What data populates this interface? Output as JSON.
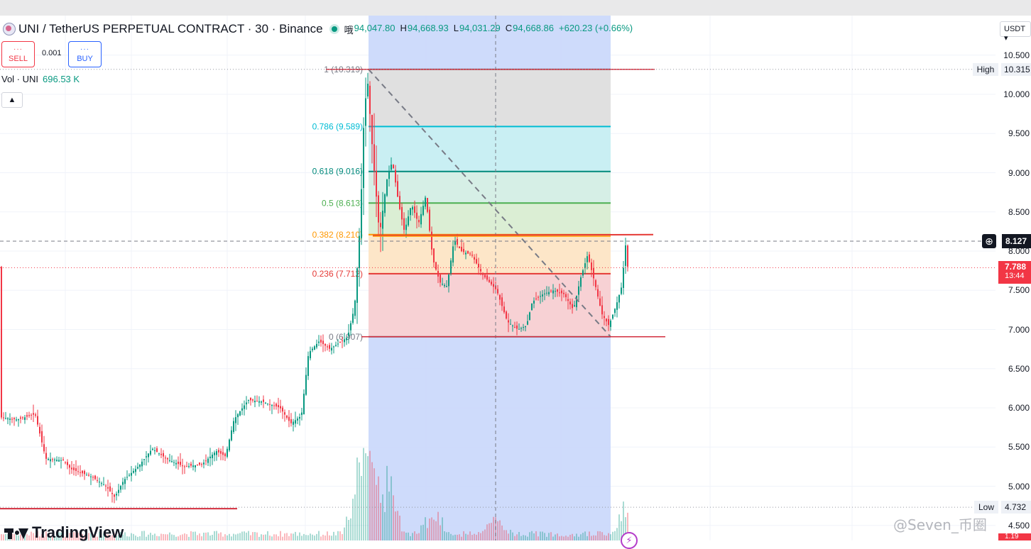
{
  "header": {
    "symbol_title": "UNI / TetherUS PERPETUAL CONTRACT · 30 · Binance",
    "ohlc": [
      {
        "key": "哦",
        "value": "94,047.80"
      },
      {
        "key": "H",
        "value": "94,668.93"
      },
      {
        "key": "L",
        "value": "94,031.29"
      },
      {
        "key": "C",
        "value": "94,668.86"
      },
      {
        "key": "",
        "value": "+620.23 (+0.66%)"
      }
    ]
  },
  "trade": {
    "sell_dots": "···",
    "sell_label": "SELL",
    "qty": "0.001",
    "buy_dots": "···",
    "buy_label": "BUY"
  },
  "volume": {
    "label": "Vol · UNI",
    "value": "696.53 K"
  },
  "collapse_icon": "chevron-up-icon",
  "axis": {
    "currency": "USDT",
    "ticks": [
      "10.500",
      "10.000",
      "9.500",
      "9.000",
      "8.500",
      "8.000",
      "7.500",
      "7.000",
      "6.500",
      "6.000",
      "5.500",
      "5.000",
      "4.500"
    ],
    "tick_values": [
      10.5,
      10.0,
      9.5,
      9.0,
      8.5,
      8.0,
      7.5,
      7.0,
      6.5,
      6.0,
      5.5,
      5.0,
      4.5
    ],
    "high_label": "High",
    "high_value": "10.315",
    "crosshair_value": "8.127",
    "last_price": "7.788",
    "countdown": "13:44",
    "low_label": "Low",
    "low_value": "4.732",
    "bottom_badge": "1.19"
  },
  "fib": {
    "levels": [
      {
        "ratio": 1,
        "label": "1 (10.319)",
        "price": 10.319,
        "color": "#787b86",
        "fill": "#e0e0e0"
      },
      {
        "ratio": 0.786,
        "label": "0.786 (9.589)",
        "price": 9.589,
        "color": "#00bcd4",
        "fill": "#c9eff3"
      },
      {
        "ratio": 0.618,
        "label": "0.618 (9.016)",
        "price": 9.016,
        "color": "#00897b",
        "fill": "#d6efe6"
      },
      {
        "ratio": 0.5,
        "label": "0.5 (8.613)",
        "price": 8.613,
        "color": "#4caf50",
        "fill": "#dbeed4"
      },
      {
        "ratio": 0.382,
        "label": "0.382 (8.210)",
        "price": 8.21,
        "color": "#ff9800",
        "fill": "#fde6c8"
      },
      {
        "ratio": 0.236,
        "label": "0.236 (7.712)",
        "price": 7.712,
        "color": "#e53935",
        "fill": "#f7d1d4"
      },
      {
        "ratio": 0,
        "label": "0 (6.907)",
        "price": 6.907,
        "color": "#787b86",
        "fill": ""
      }
    ]
  },
  "colors": {
    "up": "#089981",
    "down": "#f23645",
    "fib_range_highlight": "#c9d7fb",
    "support_line": "#d32f3f"
  },
  "branding": {
    "logo_text": "TradingView",
    "watermark": "@Seven_币圈"
  },
  "chart_data": {
    "type": "candlestick",
    "title": "UNI / TetherUS PERPETUAL CONTRACT · 30 · Binance",
    "ylabel": "USDT",
    "ylim": [
      4.4,
      10.7
    ],
    "grid": true,
    "price_anchors": [
      [
        0,
        5.88
      ],
      [
        25,
        5.85
      ],
      [
        50,
        5.92
      ],
      [
        65,
        5.35
      ],
      [
        90,
        5.33
      ],
      [
        100,
        5.22
      ],
      [
        130,
        5.12
      ],
      [
        150,
        5.0
      ],
      [
        162,
        4.86
      ],
      [
        175,
        5.08
      ],
      [
        195,
        5.25
      ],
      [
        215,
        5.48
      ],
      [
        235,
        5.35
      ],
      [
        260,
        5.25
      ],
      [
        285,
        5.28
      ],
      [
        305,
        5.45
      ],
      [
        318,
        5.38
      ],
      [
        330,
        5.85
      ],
      [
        350,
        6.1
      ],
      [
        370,
        6.08
      ],
      [
        395,
        6.0
      ],
      [
        410,
        5.8
      ],
      [
        425,
        5.9
      ],
      [
        435,
        6.7
      ],
      [
        450,
        6.85
      ],
      [
        465,
        6.75
      ],
      [
        490,
        6.9
      ],
      [
        500,
        7.3
      ],
      [
        508,
        8.4
      ],
      [
        513,
        9.7
      ],
      [
        518,
        10.2
      ],
      [
        525,
        9.3
      ],
      [
        535,
        8.2
      ],
      [
        545,
        8.9
      ],
      [
        553,
        9.15
      ],
      [
        562,
        8.6
      ],
      [
        570,
        8.25
      ],
      [
        580,
        8.6
      ],
      [
        590,
        8.35
      ],
      [
        600,
        8.7
      ],
      [
        610,
        7.9
      ],
      [
        620,
        7.6
      ],
      [
        630,
        7.55
      ],
      [
        640,
        8.15
      ],
      [
        650,
        8.0
      ],
      [
        665,
        7.95
      ],
      [
        680,
        7.7
      ],
      [
        700,
        7.5
      ],
      [
        715,
        7.1
      ],
      [
        730,
        7.0
      ],
      [
        742,
        7.05
      ],
      [
        750,
        7.35
      ],
      [
        765,
        7.45
      ],
      [
        780,
        7.5
      ],
      [
        795,
        7.45
      ],
      [
        808,
        7.25
      ],
      [
        818,
        7.65
      ],
      [
        828,
        7.95
      ],
      [
        838,
        7.6
      ],
      [
        848,
        7.2
      ],
      [
        858,
        7.05
      ],
      [
        868,
        7.3
      ],
      [
        876,
        7.55
      ],
      [
        882,
        8.12
      ],
      [
        884,
        7.8
      ]
    ],
    "volume_spikes": [
      [
        510,
        0.95
      ],
      [
        515,
        1.0
      ],
      [
        530,
        0.5
      ],
      [
        545,
        0.55
      ],
      [
        610,
        0.35
      ],
      [
        698,
        0.3
      ],
      [
        882,
        0.4
      ]
    ],
    "fib_retracement": {
      "high": 10.319,
      "low": 6.907
    }
  }
}
